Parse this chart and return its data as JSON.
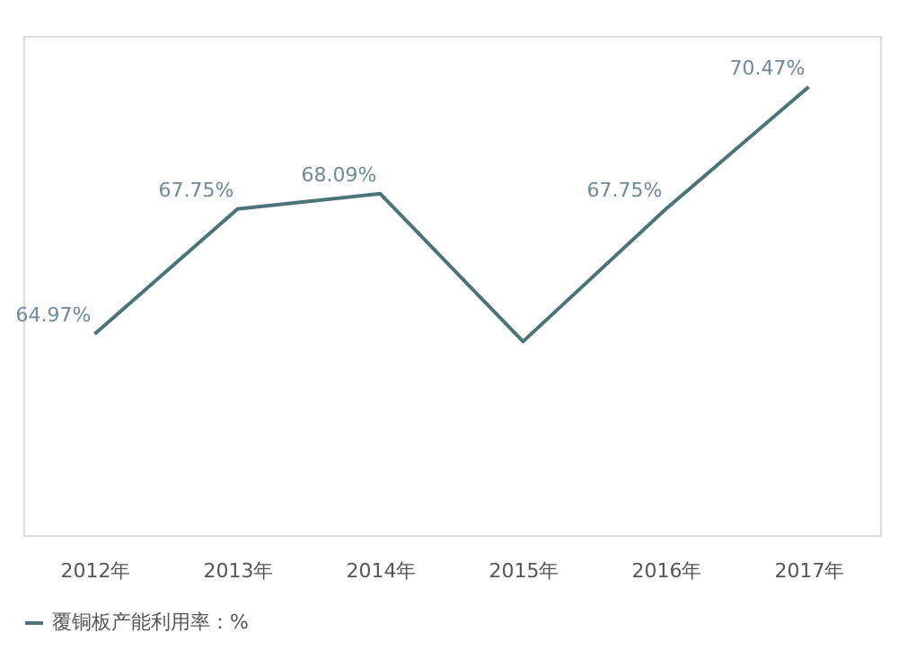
{
  "chart_data": {
    "type": "line",
    "categories": [
      "2012年",
      "2013年",
      "2014年",
      "2015年",
      "2016年",
      "2017年"
    ],
    "series": [
      {
        "name": "覆铜板产能利用率：%",
        "color": "#4b7479",
        "values": [
          64.97,
          67.75,
          68.09,
          64.8,
          67.75,
          70.47
        ],
        "value_labels": [
          "64.97%",
          "67.75%",
          "68.09%",
          null,
          "67.75%",
          "70.47%"
        ]
      }
    ],
    "marker": "none",
    "line_style": "solid",
    "grid": false,
    "legend": "bottom"
  }
}
